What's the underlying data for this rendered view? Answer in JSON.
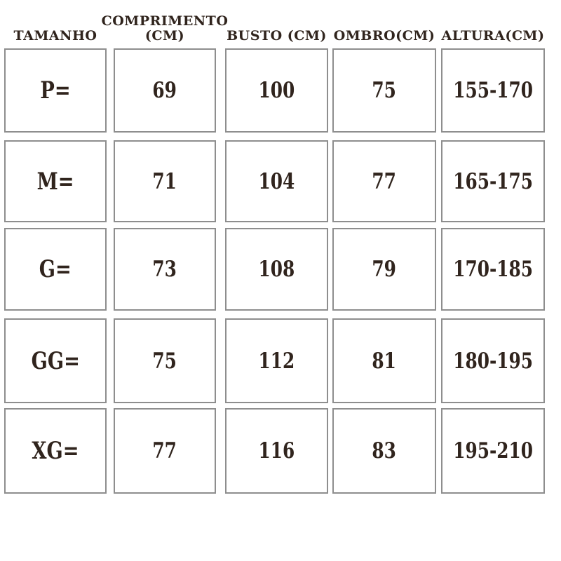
{
  "table": {
    "columns": [
      "TAMANHO",
      "COMPRIMENTO (CM)",
      "BUSTO (CM)",
      "OMBRO(CM)",
      "ALTURA(CM)"
    ],
    "rows": [
      [
        "P=",
        "69",
        "100",
        "75",
        "155-170"
      ],
      [
        "M=",
        "71",
        "104",
        "77",
        "165-175"
      ],
      [
        "G=",
        "73",
        "108",
        "79",
        "170-185"
      ],
      [
        "GG=",
        "75",
        "112",
        "81",
        "180-195"
      ],
      [
        "XG=",
        "77",
        "116",
        "83",
        "195-210"
      ]
    ]
  },
  "chart_data": {
    "type": "table",
    "title": "",
    "columns": [
      "TAMANHO",
      "COMPRIMENTO (CM)",
      "BUSTO (CM)",
      "OMBRO(CM)",
      "ALTURA(CM)"
    ],
    "rows": [
      [
        "P=",
        69,
        100,
        75,
        "155-170"
      ],
      [
        "M=",
        71,
        104,
        77,
        "165-175"
      ],
      [
        "G=",
        73,
        108,
        79,
        "170-185"
      ],
      [
        "GG=",
        75,
        112,
        81,
        "180-195"
      ],
      [
        "XG=",
        77,
        116,
        83,
        "195-210"
      ]
    ]
  },
  "colors": {
    "text": "#30241d",
    "border": "#8e8e8e",
    "background": "#ffffff"
  }
}
